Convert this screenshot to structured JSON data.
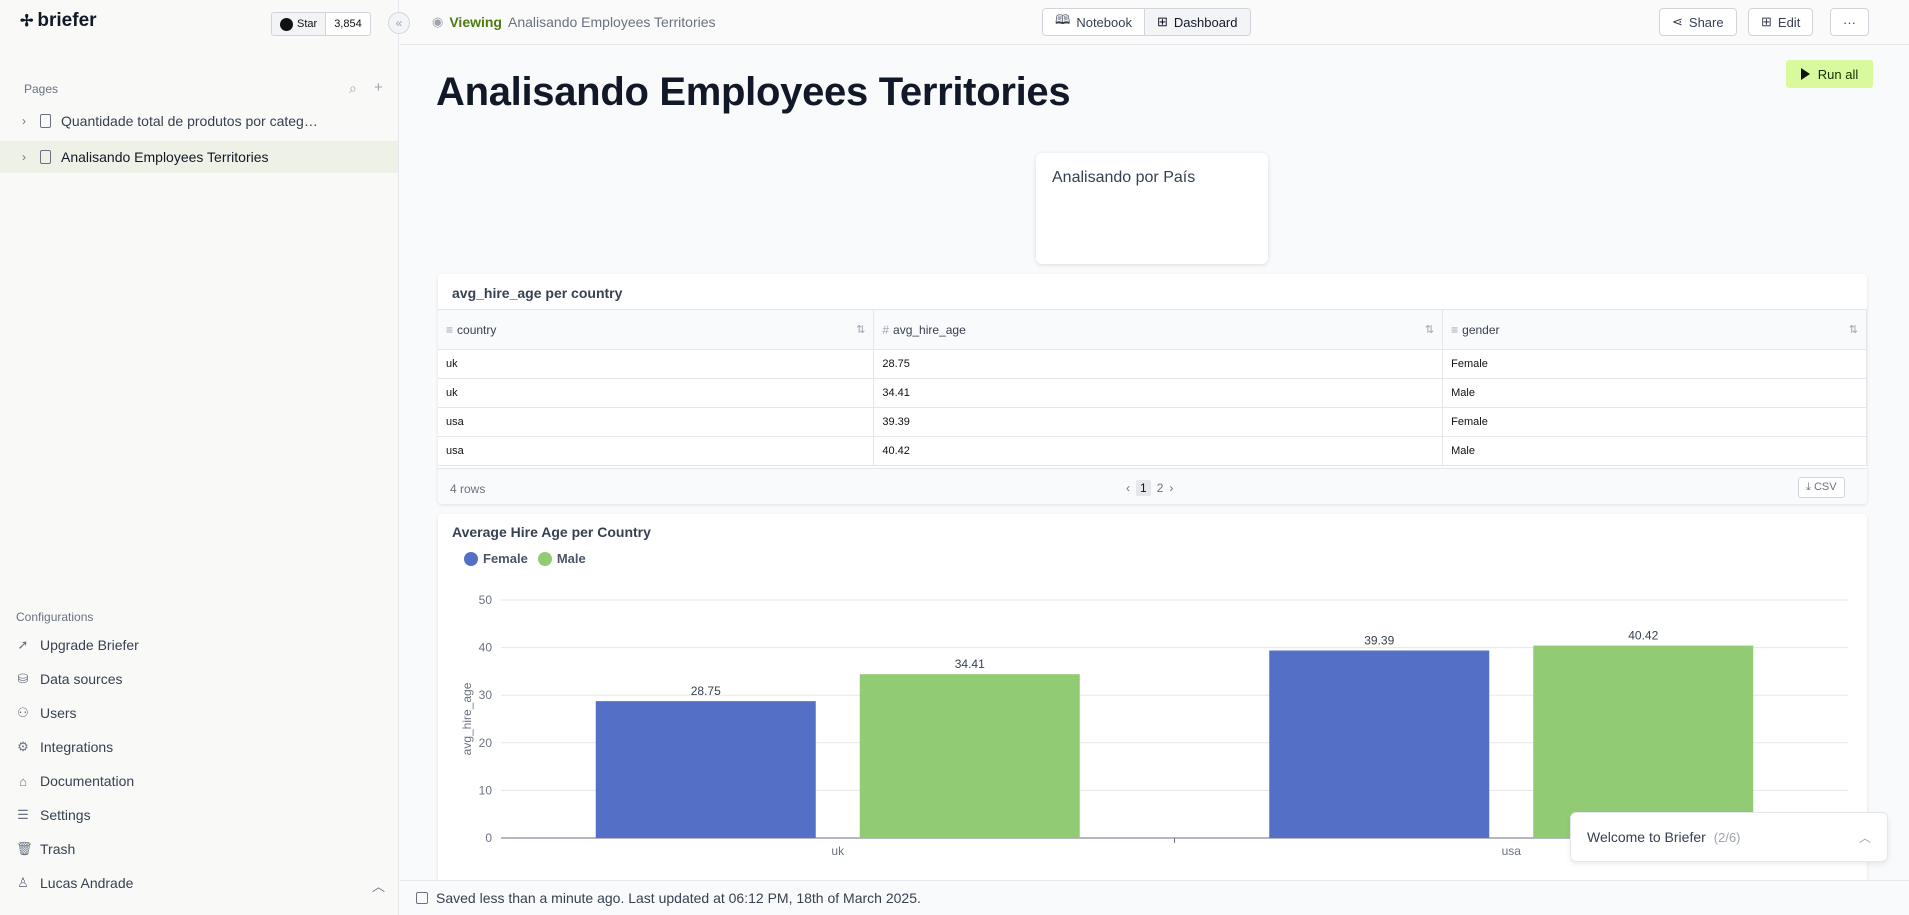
{
  "app": {
    "brand": "briefer",
    "github": {
      "label": "Star",
      "count": "3,854"
    }
  },
  "sidebar": {
    "pages_label": "Pages",
    "pages": [
      {
        "label": "Quantidade total de produtos por categ…"
      },
      {
        "label": "Analisando Employees Territories"
      }
    ],
    "config_label": "Configurations",
    "config_items": [
      {
        "label": "Upgrade Briefer",
        "icon": "rocket-icon"
      },
      {
        "label": "Data sources",
        "icon": "database-icon"
      },
      {
        "label": "Users",
        "icon": "users-icon"
      },
      {
        "label": "Integrations",
        "icon": "integrations-icon"
      },
      {
        "label": "Documentation",
        "icon": "documentation-icon"
      },
      {
        "label": "Settings",
        "icon": "settings-icon"
      },
      {
        "label": "Trash",
        "icon": "trash-icon"
      },
      {
        "label": "Lucas Andrade",
        "icon": "user-icon"
      }
    ]
  },
  "topbar": {
    "viewing_label": "Viewing",
    "page_name": "Analisando Employees Territories",
    "modes": [
      "Notebook",
      "Dashboard"
    ],
    "active_mode": "Dashboard",
    "share_label": "Share",
    "edit_label": "Edit",
    "more_label": "···"
  },
  "main": {
    "title": "Analisando Employees Territories",
    "run_all_label": "Run all",
    "text_block": "Analisando por País",
    "table": {
      "title": "avg_hire_age per country",
      "columns": [
        {
          "name": "country",
          "type_icon": "≡"
        },
        {
          "name": "avg_hire_age",
          "type_icon": "#"
        },
        {
          "name": "gender",
          "type_icon": "≡"
        }
      ],
      "rows": [
        [
          "uk",
          "28.75",
          "Female"
        ],
        [
          "uk",
          "34.41",
          "Male"
        ],
        [
          "usa",
          "39.39",
          "Female"
        ],
        [
          "usa",
          "40.42",
          "Male"
        ]
      ],
      "row_count": "4 rows",
      "pages": [
        "1",
        "2"
      ],
      "current_page": "1",
      "csv_label": "CSV"
    }
  },
  "chart_data": {
    "type": "bar",
    "title": "Average Hire Age per Country",
    "xlabel": "",
    "ylabel": "avg_hire_age",
    "categories": [
      "uk",
      "usa"
    ],
    "series": [
      {
        "name": "Female",
        "values": [
          28.75,
          39.39
        ],
        "color": "#5470c6"
      },
      {
        "name": "Male",
        "values": [
          34.41,
          40.42
        ],
        "color": "#91cc75"
      }
    ],
    "ylim": [
      0,
      50
    ],
    "yticks": [
      0,
      10,
      20,
      30,
      40,
      50
    ],
    "grid": true,
    "legend": "top-left"
  },
  "footer": {
    "status": "Saved less than a minute ago. Last updated at 06:12 PM, 18th of March 2025."
  },
  "welcome": {
    "label": "Welcome to Briefer",
    "progress": "(2/6)"
  }
}
